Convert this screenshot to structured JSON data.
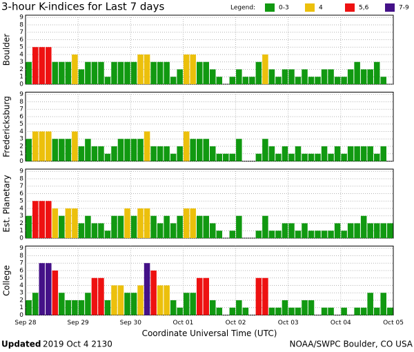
{
  "title": "3-hour K-indices for Last 7 days",
  "legend_title": "Legend:",
  "legend": [
    {
      "label": "0-3",
      "color": "#119911"
    },
    {
      "label": "4",
      "color": "#ecc00c"
    },
    {
      "label": "5,6",
      "color": "#ee1111"
    },
    {
      "label": "7-9",
      "color": "#441188"
    }
  ],
  "footer": {
    "updated": "Updated",
    "timestamp": "2019 Oct  4 2130",
    "source": "NOAA/SWPC Boulder, CO USA"
  },
  "chart_data": [
    {
      "type": "bar",
      "y_label": "Boulder",
      "ylim": [
        0,
        9.3
      ],
      "yticks": [
        0,
        1,
        2,
        3,
        4,
        5,
        6,
        7,
        8,
        9
      ],
      "grid": true,
      "values": [
        3,
        5,
        5,
        5,
        3,
        3,
        3,
        4,
        2,
        3,
        3,
        3,
        1,
        3,
        3,
        3,
        3,
        4,
        4,
        3,
        3,
        3,
        1,
        2,
        4,
        4,
        3,
        3,
        2,
        1,
        0,
        1,
        2,
        1,
        1,
        3,
        4,
        2,
        1,
        2,
        2,
        1,
        2,
        1,
        1,
        2,
        2,
        1,
        1,
        2,
        3,
        2,
        2,
        3,
        1,
        0
      ]
    },
    {
      "type": "bar",
      "y_label": "Fredericksburg",
      "ylim": [
        0,
        9.3
      ],
      "yticks": [
        0,
        1,
        2,
        3,
        4,
        5,
        6,
        7,
        8,
        9
      ],
      "grid": true,
      "values": [
        3,
        4,
        4,
        4,
        3,
        3,
        3,
        4,
        2,
        3,
        2,
        2,
        1,
        2,
        3,
        3,
        3,
        3,
        4,
        2,
        2,
        2,
        1,
        2,
        4,
        3,
        3,
        3,
        2,
        1,
        1,
        1,
        3,
        0,
        0,
        1,
        3,
        2,
        1,
        2,
        1,
        2,
        1,
        1,
        1,
        2,
        1,
        2,
        1,
        2,
        2,
        2,
        2,
        1,
        2,
        0
      ]
    },
    {
      "type": "bar",
      "y_label": "Est. Planetary",
      "ylim": [
        0,
        9.3
      ],
      "yticks": [
        0,
        1,
        2,
        3,
        4,
        5,
        6,
        7,
        8,
        9
      ],
      "grid": true,
      "values": [
        3,
        5,
        5,
        5,
        4,
        3,
        4,
        4,
        2,
        3,
        2,
        2,
        1,
        3,
        3,
        4,
        3,
        4,
        4,
        3,
        2,
        3,
        2,
        3,
        4,
        4,
        3,
        3,
        2,
        1,
        0,
        1,
        3,
        0,
        0,
        1,
        3,
        1,
        1,
        2,
        2,
        1,
        2,
        1,
        1,
        1,
        1,
        2,
        1,
        2,
        2,
        3,
        2,
        2,
        2,
        2
      ]
    },
    {
      "type": "bar",
      "y_label": "College",
      "ylim": [
        0,
        9.3
      ],
      "yticks": [
        0,
        1,
        2,
        3,
        4,
        5,
        6,
        7,
        8,
        9
      ],
      "grid": true,
      "values": [
        2,
        3,
        7,
        7,
        6,
        3,
        2,
        2,
        2,
        3,
        5,
        5,
        2,
        4,
        4,
        3,
        3,
        4,
        7,
        6,
        4,
        4,
        2,
        1,
        3,
        3,
        5,
        5,
        2,
        1,
        0,
        1,
        2,
        1,
        0,
        5,
        5,
        1,
        1,
        2,
        1,
        1,
        2,
        2,
        0,
        1,
        1,
        0,
        1,
        0,
        1,
        1,
        3,
        1,
        3,
        1
      ],
      "xticks": [
        "Sep 28",
        "Sep 29",
        "Sep 30",
        "Oct 01",
        "Oct 02",
        "Oct 03",
        "Oct 04",
        "Oct 05"
      ],
      "x_label": "Coordinate Universal Time (UTC)"
    }
  ]
}
